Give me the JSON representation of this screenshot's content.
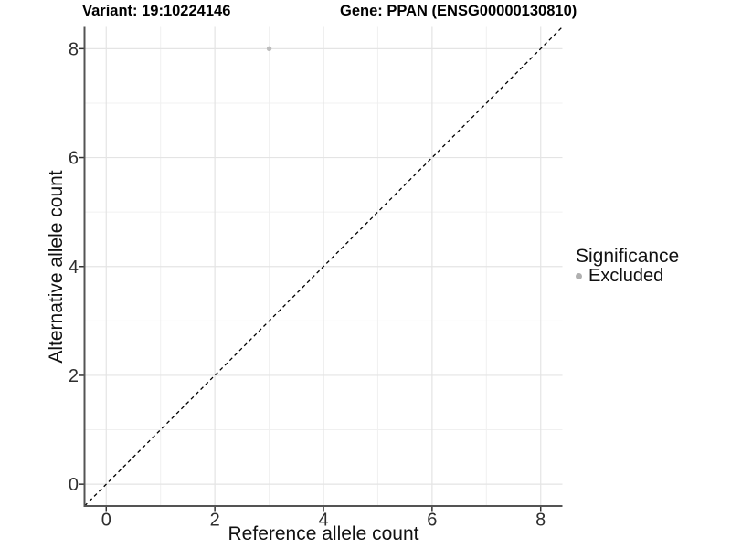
{
  "titles": {
    "left": "Variant: 19:10224146",
    "right": "Gene: PPAN (ENSG00000130810)"
  },
  "chart_data": {
    "type": "scatter",
    "title": "Variant: 19:10224146 | Gene: PPAN (ENSG00000130810)",
    "xlabel": "Reference allele count",
    "ylabel": "Alternative allele count",
    "xlim": [
      -0.4,
      8.4
    ],
    "ylim": [
      -0.4,
      8.4
    ],
    "x_ticks": [
      0,
      2,
      4,
      6,
      8
    ],
    "y_ticks": [
      0,
      2,
      4,
      6,
      8
    ],
    "x_minor": [
      1,
      3,
      5,
      7
    ],
    "y_minor": [
      1,
      3,
      5,
      7
    ],
    "series": [
      {
        "name": "Excluded",
        "color": "#bdbdbd",
        "points": [
          {
            "x": 3,
            "y": 8
          }
        ]
      }
    ],
    "reference_line": {
      "kind": "y=x",
      "style": "dashed",
      "color": "#000000"
    },
    "grid": {
      "major_color": "#e4e4e4",
      "minor_color": "#f0f0f0"
    },
    "legend": {
      "title": "Significance",
      "position": "right",
      "items": [
        {
          "label": "Excluded",
          "color": "#b0b0b0",
          "marker": "circle"
        }
      ]
    },
    "background": "#ffffff"
  },
  "style": {
    "axis_line_color": "#545454",
    "tick_mark_color": "#333333",
    "tick_label_color": "#2e2e2e"
  }
}
